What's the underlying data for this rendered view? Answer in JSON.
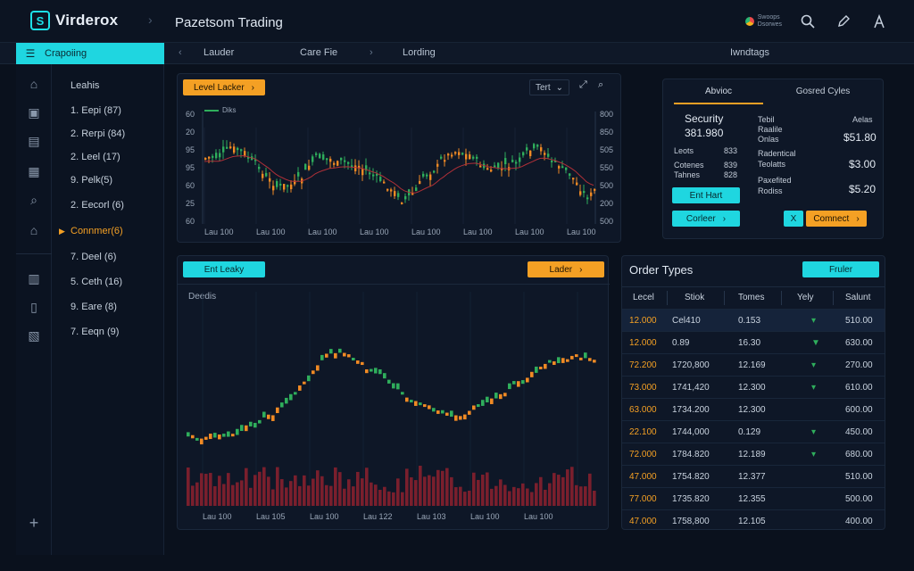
{
  "brand": {
    "name": "Virderox",
    "mark": "S"
  },
  "app_title": "Pazetsom Trading",
  "top_icons": {
    "region_line1": "Swoops",
    "region_line2": "Dsorwes",
    "search": "search-icon",
    "edit": "pencil-icon",
    "account": "account-icon"
  },
  "nav": {
    "active_label": "Crapoiing",
    "items": [
      {
        "label": "Lauder",
        "name": "nav-lauder"
      },
      {
        "label": "Care Fie",
        "name": "nav-care-fie"
      },
      {
        "label": "Lording",
        "name": "nav-lording"
      },
      {
        "label": "Iwndtags",
        "name": "nav-iwndtags"
      }
    ]
  },
  "sidebar": {
    "header": "Leahis",
    "items": [
      {
        "label": "1. Eepi (87)"
      },
      {
        "label": "2. Rerpi (84)"
      },
      {
        "label": "2. Leel (17)"
      },
      {
        "label": "9. Pelk(5)"
      },
      {
        "label": "2. Eecorl (6)"
      },
      {
        "label": "Connmer(6)",
        "active": true
      },
      {
        "label": "7. Deel (6)"
      },
      {
        "label": "5. Ceth (16)"
      },
      {
        "label": "9. Eare (8)"
      },
      {
        "label": "7. Eeqn (9)"
      }
    ]
  },
  "top_chart": {
    "button": "Level Lacker",
    "timeframe": "Tert",
    "legend": "Diks",
    "y_left": [
      "60",
      "20",
      "95",
      "95",
      "60",
      "25",
      "60"
    ],
    "y_right": [
      "800",
      "850",
      "505",
      "550",
      "500",
      "200",
      "500"
    ],
    "x_ticks": [
      "Lau 100",
      "Lau 100",
      "Lau 100",
      "Lau 100",
      "Lau 100",
      "Lau 100",
      "Lau 100",
      "Lau 100"
    ]
  },
  "security": {
    "tabs": [
      "Abvioc",
      "Gosred Cyles"
    ],
    "title": "Security",
    "price": "381.980",
    "rows": [
      {
        "label": "Leots",
        "value": "833"
      },
      {
        "label": "Cotenes",
        "value": "839"
      },
      {
        "label": "Tahnes",
        "value": "828"
      }
    ],
    "fields": [
      {
        "l1": "Tebil",
        "l2": "Raalile",
        "l3": "Onlas",
        "val_label": "Aelas",
        "value": "$51.80"
      },
      {
        "l1": "Radentical",
        "l2": "Teolatts",
        "l3": "",
        "val_label": "",
        "value": "$3.00"
      },
      {
        "l1": "Paxefited",
        "l2": "Rodiss",
        "l3": "",
        "val_label": "",
        "value": "$5.20"
      }
    ],
    "btn_start": "Ent Hart",
    "btn_convert": "Corleer",
    "btn_x": "X",
    "btn_connect": "Comnect"
  },
  "bottom_chart": {
    "btn_left": "Ent Leaky",
    "btn_right": "Lader",
    "label": "Deedis",
    "x_ticks": [
      "Lau 100",
      "Lau 105",
      "Lau 100",
      "Lau 122",
      "Lau 103",
      "Lau 100",
      "Lau 100"
    ]
  },
  "orders": {
    "title": "Order Types",
    "button": "Fruler",
    "columns": [
      "Lecel",
      "Stiok",
      "Tomes",
      "Yely",
      "Salunt"
    ],
    "rows": [
      {
        "c0": "12.000",
        "c1": "Cel410",
        "c2": "0.153",
        "c3": "▾",
        "c4": "510.00"
      },
      {
        "c0": "12.000",
        "c1": "0.89",
        "c2": "16.30",
        "c3": "▼",
        "c4": "630.00"
      },
      {
        "c0": "72.200",
        "c1": "1720,800",
        "c2": "12.169",
        "c3": "▾",
        "c4": "270.00"
      },
      {
        "c0": "73.000",
        "c1": "1741,420",
        "c2": "12.300",
        "c3": "▾",
        "c4": "610.00"
      },
      {
        "c0": "63.000",
        "c1": "1734.200",
        "c2": "12.300",
        "c3": "",
        "c4": "600.00"
      },
      {
        "c0": "22.100",
        "c1": "1744,000",
        "c2": "0.129",
        "c3": "▾",
        "c4": "450.00"
      },
      {
        "c0": "72.000",
        "c1": "1784.820",
        "c2": "12.189",
        "c3": "▾",
        "c4": "680.00"
      },
      {
        "c0": "47.000",
        "c1": "1754.820",
        "c2": "12.377",
        "c3": "",
        "c4": "510.00"
      },
      {
        "c0": "77.000",
        "c1": "1735.820",
        "c2": "12.355",
        "c3": "",
        "c4": "500.00"
      },
      {
        "c0": "47.000",
        "c1": "1758,800",
        "c2": "12.105",
        "c3": "",
        "c4": "400.00"
      }
    ]
  },
  "colors": {
    "accent": "#1fd6e0",
    "orange": "#f4a024",
    "up": "#2fae5c",
    "down": "#f08a24",
    "vol": "#7a1f2d"
  }
}
